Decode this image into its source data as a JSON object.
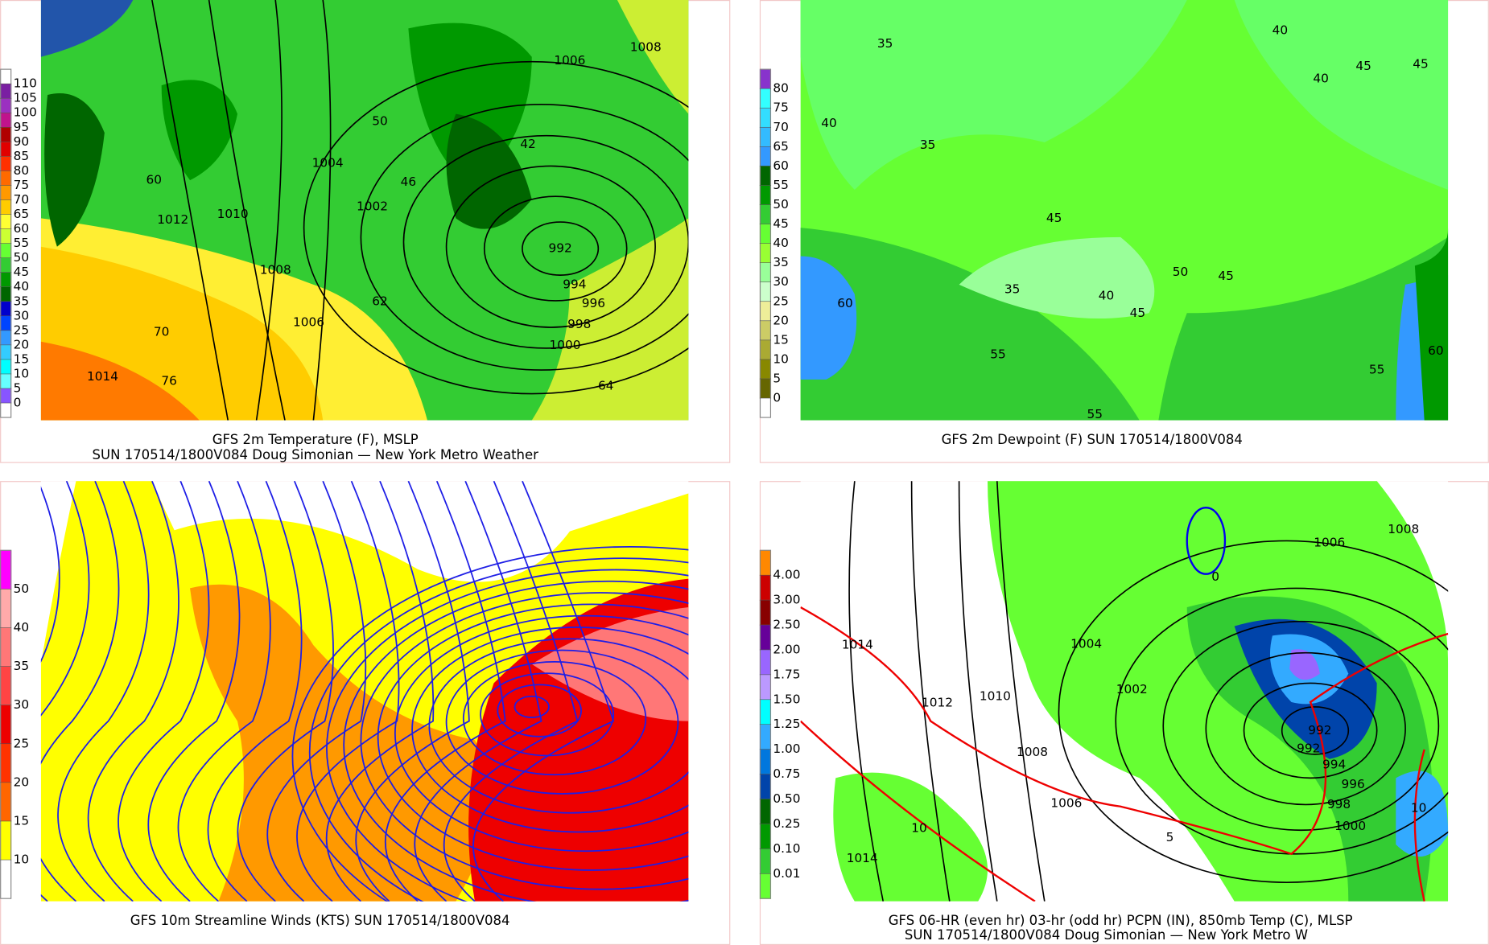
{
  "panels": [
    {
      "caption": [
        "GFS 2m Temperature (F), MSLP",
        "SUN 170514/1800V084 Doug Simonian — New York Metro Weather"
      ],
      "colorbar": {
        "ticks": [
          110,
          105,
          100,
          95,
          90,
          85,
          80,
          75,
          70,
          65,
          60,
          55,
          50,
          45,
          40,
          35,
          30,
          25,
          20,
          15,
          10,
          5,
          0
        ],
        "colors": [
          "#ffffff",
          "#7a1fa2",
          "#9b30c0",
          "#c0138c",
          "#b00000",
          "#e00000",
          "#ff3000",
          "#ff6a00",
          "#ff9900",
          "#ffcc00",
          "#ffff33",
          "#ccff33",
          "#66ff33",
          "#33cc33",
          "#009900",
          "#006600",
          "#0000cc",
          "#0044ff",
          "#3399ff",
          "#33ccff",
          "#00ffff",
          "#66ffff",
          "#8855ff",
          "#ffffff"
        ]
      },
      "contour_labels": [
        992,
        994,
        996,
        998,
        1000,
        1004,
        1002,
        1008,
        1006,
        1010,
        1012,
        1014,
        1006,
        1008,
        60,
        50,
        70,
        76,
        62,
        46,
        42,
        64
      ]
    },
    {
      "caption": [
        "GFS 2m Dewpoint (F)   SUN 170514/1800V084"
      ],
      "colorbar": {
        "ticks": [
          80,
          75,
          70,
          65,
          60,
          55,
          50,
          45,
          40,
          35,
          30,
          25,
          20,
          15,
          10,
          5,
          0
        ],
        "colors": [
          "#8833cc",
          "#33ffff",
          "#33ddff",
          "#33bbff",
          "#3399ff",
          "#006600",
          "#009900",
          "#33cc33",
          "#66ff33",
          "#99ff33",
          "#99ff99",
          "#ccffcc",
          "#eeee99",
          "#cccc66",
          "#aaaa33",
          "#888800",
          "#666600",
          "#ffffff"
        ]
      },
      "contour_labels": [
        35,
        40,
        35,
        45,
        35,
        40,
        45,
        50,
        45,
        55,
        60,
        55,
        60,
        55,
        40,
        45,
        45,
        40
      ]
    },
    {
      "caption": [
        "GFS 10m Streamline Winds (KTS)   SUN 170514/1800V084"
      ],
      "colorbar": {
        "ticks": [
          50,
          40,
          35,
          30,
          25,
          20,
          15,
          10
        ],
        "colors": [
          "#ff00ff",
          "#ffaaaa",
          "#ff7777",
          "#ff4444",
          "#ee0000",
          "#ff3300",
          "#ff6600",
          "#ffff00",
          "#ffffff"
        ]
      },
      "contour_labels": []
    },
    {
      "caption": [
        "GFS 06-HR (even hr) 03-hr (odd hr) PCPN (IN), 850mb Temp (C), MLSP",
        "SUN 170514/1800V084 Doug Simonian — New York Metro W"
      ],
      "colorbar": {
        "ticks": [
          {
            "value": 4,
            "label": "4.00"
          },
          {
            "value": 3,
            "label": "3.00"
          },
          {
            "value": 2.5,
            "label": "2.50"
          },
          {
            "value": 2,
            "label": "2.00"
          },
          {
            "value": 1.75,
            "label": "1.75"
          },
          {
            "value": 1.5,
            "label": "1.50"
          },
          {
            "value": 1.25,
            "label": "1.25"
          },
          {
            "value": 1,
            "label": "1.00"
          },
          {
            "value": 0.75,
            "label": "0.75"
          },
          {
            "value": 0.5,
            "label": "0.50"
          },
          {
            "value": 0.25,
            "label": "0.25"
          },
          {
            "value": 0.1,
            "label": "0.10"
          },
          {
            "value": 0.01,
            "label": "0.01"
          }
        ],
        "colors": [
          "#ff8800",
          "#cc0000",
          "#880000",
          "#660099",
          "#9966ff",
          "#bb99ff",
          "#00ffff",
          "#33aaff",
          "#0077dd",
          "#0044aa",
          "#006600",
          "#009900",
          "#33cc33",
          "#66ff33"
        ]
      },
      "contour_labels": [
        1014,
        1012,
        1010,
        1008,
        1006,
        1004,
        1002,
        1000,
        998,
        996,
        994,
        992,
        1006,
        1008,
        1014,
        10,
        5,
        10,
        0,
        992
      ]
    }
  ]
}
